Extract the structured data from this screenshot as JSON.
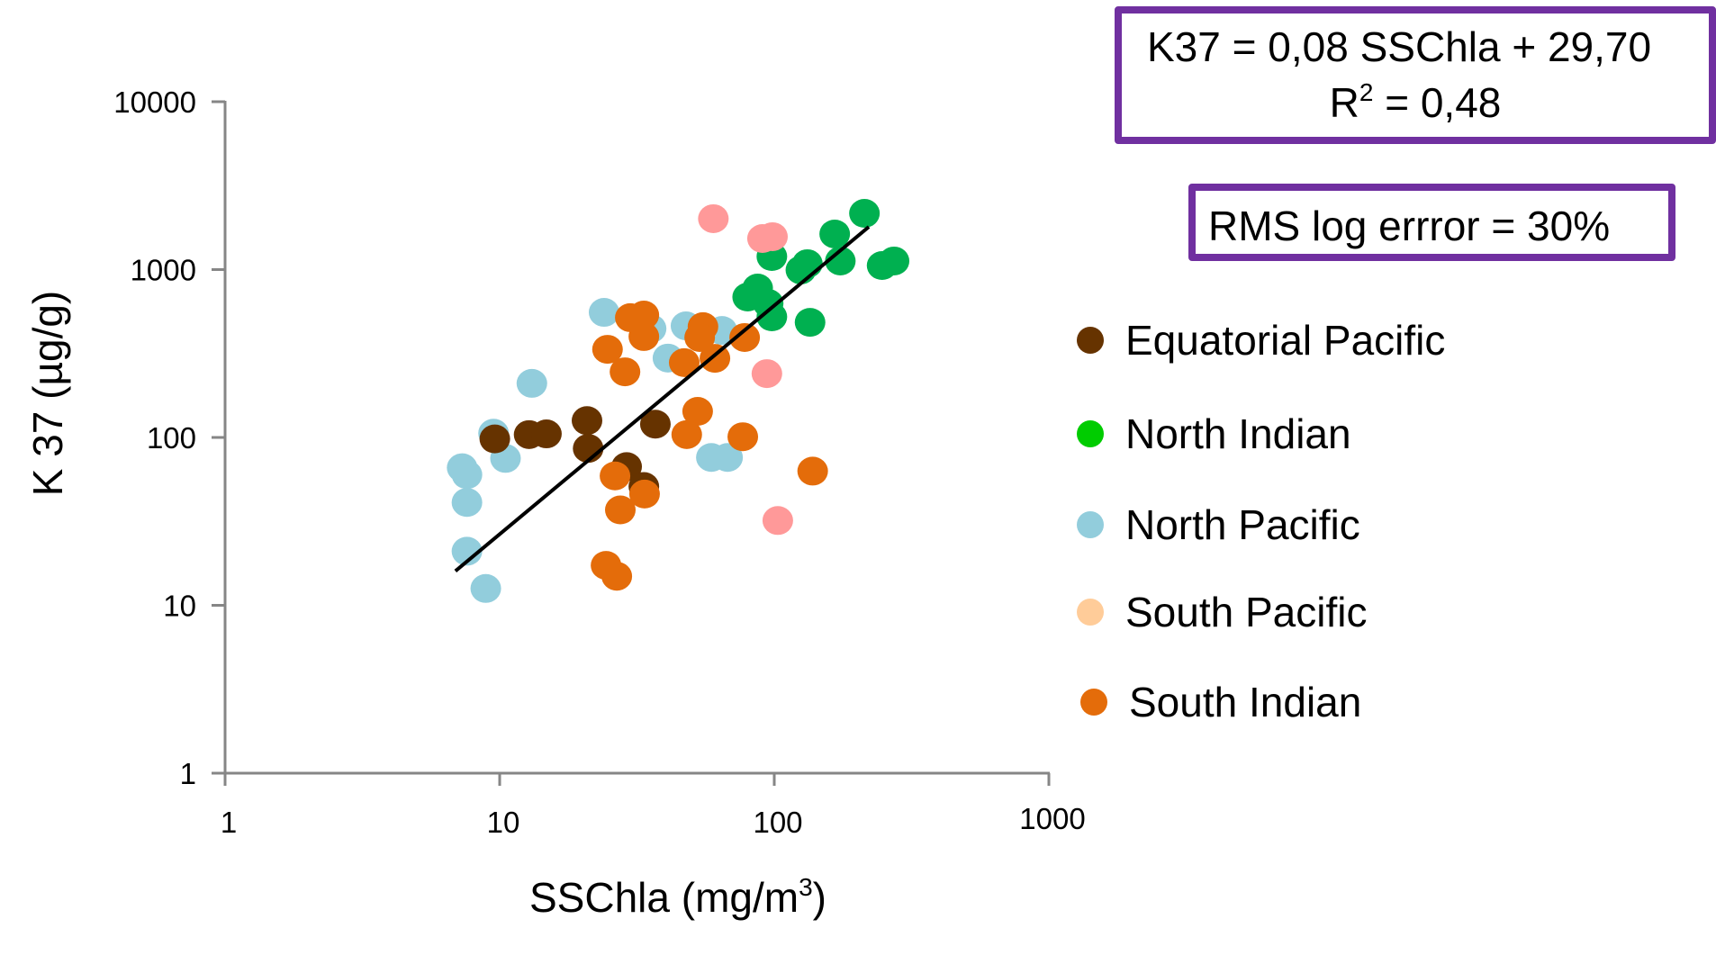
{
  "chart_data": {
    "type": "scatter",
    "title": "",
    "xlabel": "SSChla (mg/m",
    "xlabel_sup": "3",
    "xlabel_end": ")",
    "ylabel": "K 37 (µg/g)",
    "xscale": "log",
    "yscale": "log",
    "xlim": [
      1,
      1000
    ],
    "ylim": [
      1,
      10000
    ],
    "x_ticks": [
      1,
      10,
      100,
      1000
    ],
    "x_tick_labels": [
      "1",
      "10",
      "100",
      "1000"
    ],
    "y_ticks": [
      1,
      10,
      100,
      1000,
      10000
    ],
    "y_tick_labels": [
      "1",
      "10",
      "100",
      "1000",
      "10000"
    ],
    "grid": false,
    "legend_position": "right",
    "series": [
      {
        "name": "Equatorial Pacific",
        "legend_color": "#663300",
        "color": "#663300",
        "points": [
          [
            9.6,
            98
          ],
          [
            12.8,
            104
          ],
          [
            14.8,
            105
          ],
          [
            20.8,
            126
          ],
          [
            21,
            86
          ],
          [
            36.9,
            120
          ],
          [
            29,
            67
          ],
          [
            33.5,
            51
          ]
        ]
      },
      {
        "name": "North Indian",
        "legend_color": "#00CC00",
        "color": "#00B050",
        "points": [
          [
            80,
            686
          ],
          [
            87,
            776
          ],
          [
            95,
            629
          ],
          [
            98,
            523
          ],
          [
            135,
            485
          ],
          [
            98,
            1196
          ],
          [
            125,
            994
          ],
          [
            132,
            1084
          ],
          [
            166,
            1629
          ],
          [
            174,
            1125
          ],
          [
            213,
            2163
          ],
          [
            247,
            1057
          ],
          [
            273,
            1125
          ]
        ]
      },
      {
        "name": "North Pacific",
        "legend_color": "#92CDDC",
        "color": "#92CDDC",
        "points": [
          [
            7.3,
            66
          ],
          [
            7.6,
            60
          ],
          [
            7.6,
            41
          ],
          [
            7.6,
            21
          ],
          [
            8.9,
            12.6
          ],
          [
            9.5,
            106
          ],
          [
            10.5,
            75
          ],
          [
            13.1,
            210
          ],
          [
            24,
            556
          ],
          [
            35.6,
            445
          ],
          [
            41,
            297
          ],
          [
            47.7,
            462
          ],
          [
            64.5,
            434
          ],
          [
            59,
            76
          ],
          [
            67.6,
            76
          ]
        ]
      },
      {
        "name": "South Pacific",
        "legend_color": "#FFCC99",
        "color": "#FF9999",
        "points": [
          [
            60,
            2010
          ],
          [
            90.6,
            1531
          ],
          [
            98.5,
            1570
          ],
          [
            94,
            240
          ],
          [
            103,
            32
          ]
        ]
      },
      {
        "name": "South Indian",
        "legend_color": "#E46C0A",
        "color": "#E46C0A",
        "points": [
          [
            24.7,
            335
          ],
          [
            28.6,
            246
          ],
          [
            29.9,
            517
          ],
          [
            33.5,
            536
          ],
          [
            33.5,
            399
          ],
          [
            47,
            279
          ],
          [
            55,
            457
          ],
          [
            53.5,
            394
          ],
          [
            60.8,
            296
          ],
          [
            78,
            394
          ],
          [
            52.6,
            143
          ],
          [
            48,
            104
          ],
          [
            76.8,
            101
          ],
          [
            138,
            63
          ],
          [
            26.3,
            59
          ],
          [
            33.7,
            46
          ],
          [
            27.5,
            37
          ],
          [
            24.4,
            17.3
          ],
          [
            26.7,
            14.9
          ]
        ]
      }
    ],
    "regression_line": {
      "points": [
        [
          6.9,
          16
        ],
        [
          221,
          1798
        ]
      ],
      "color": "#000000"
    },
    "annotations": {
      "equation": "K37 = 0,08 SSChla + 29,70",
      "r2_prefix": "R",
      "r2_sup": "2",
      "r2_value": " = 0,48",
      "rms": "RMS log errror = 30%",
      "box_color": "#7030A0"
    }
  }
}
